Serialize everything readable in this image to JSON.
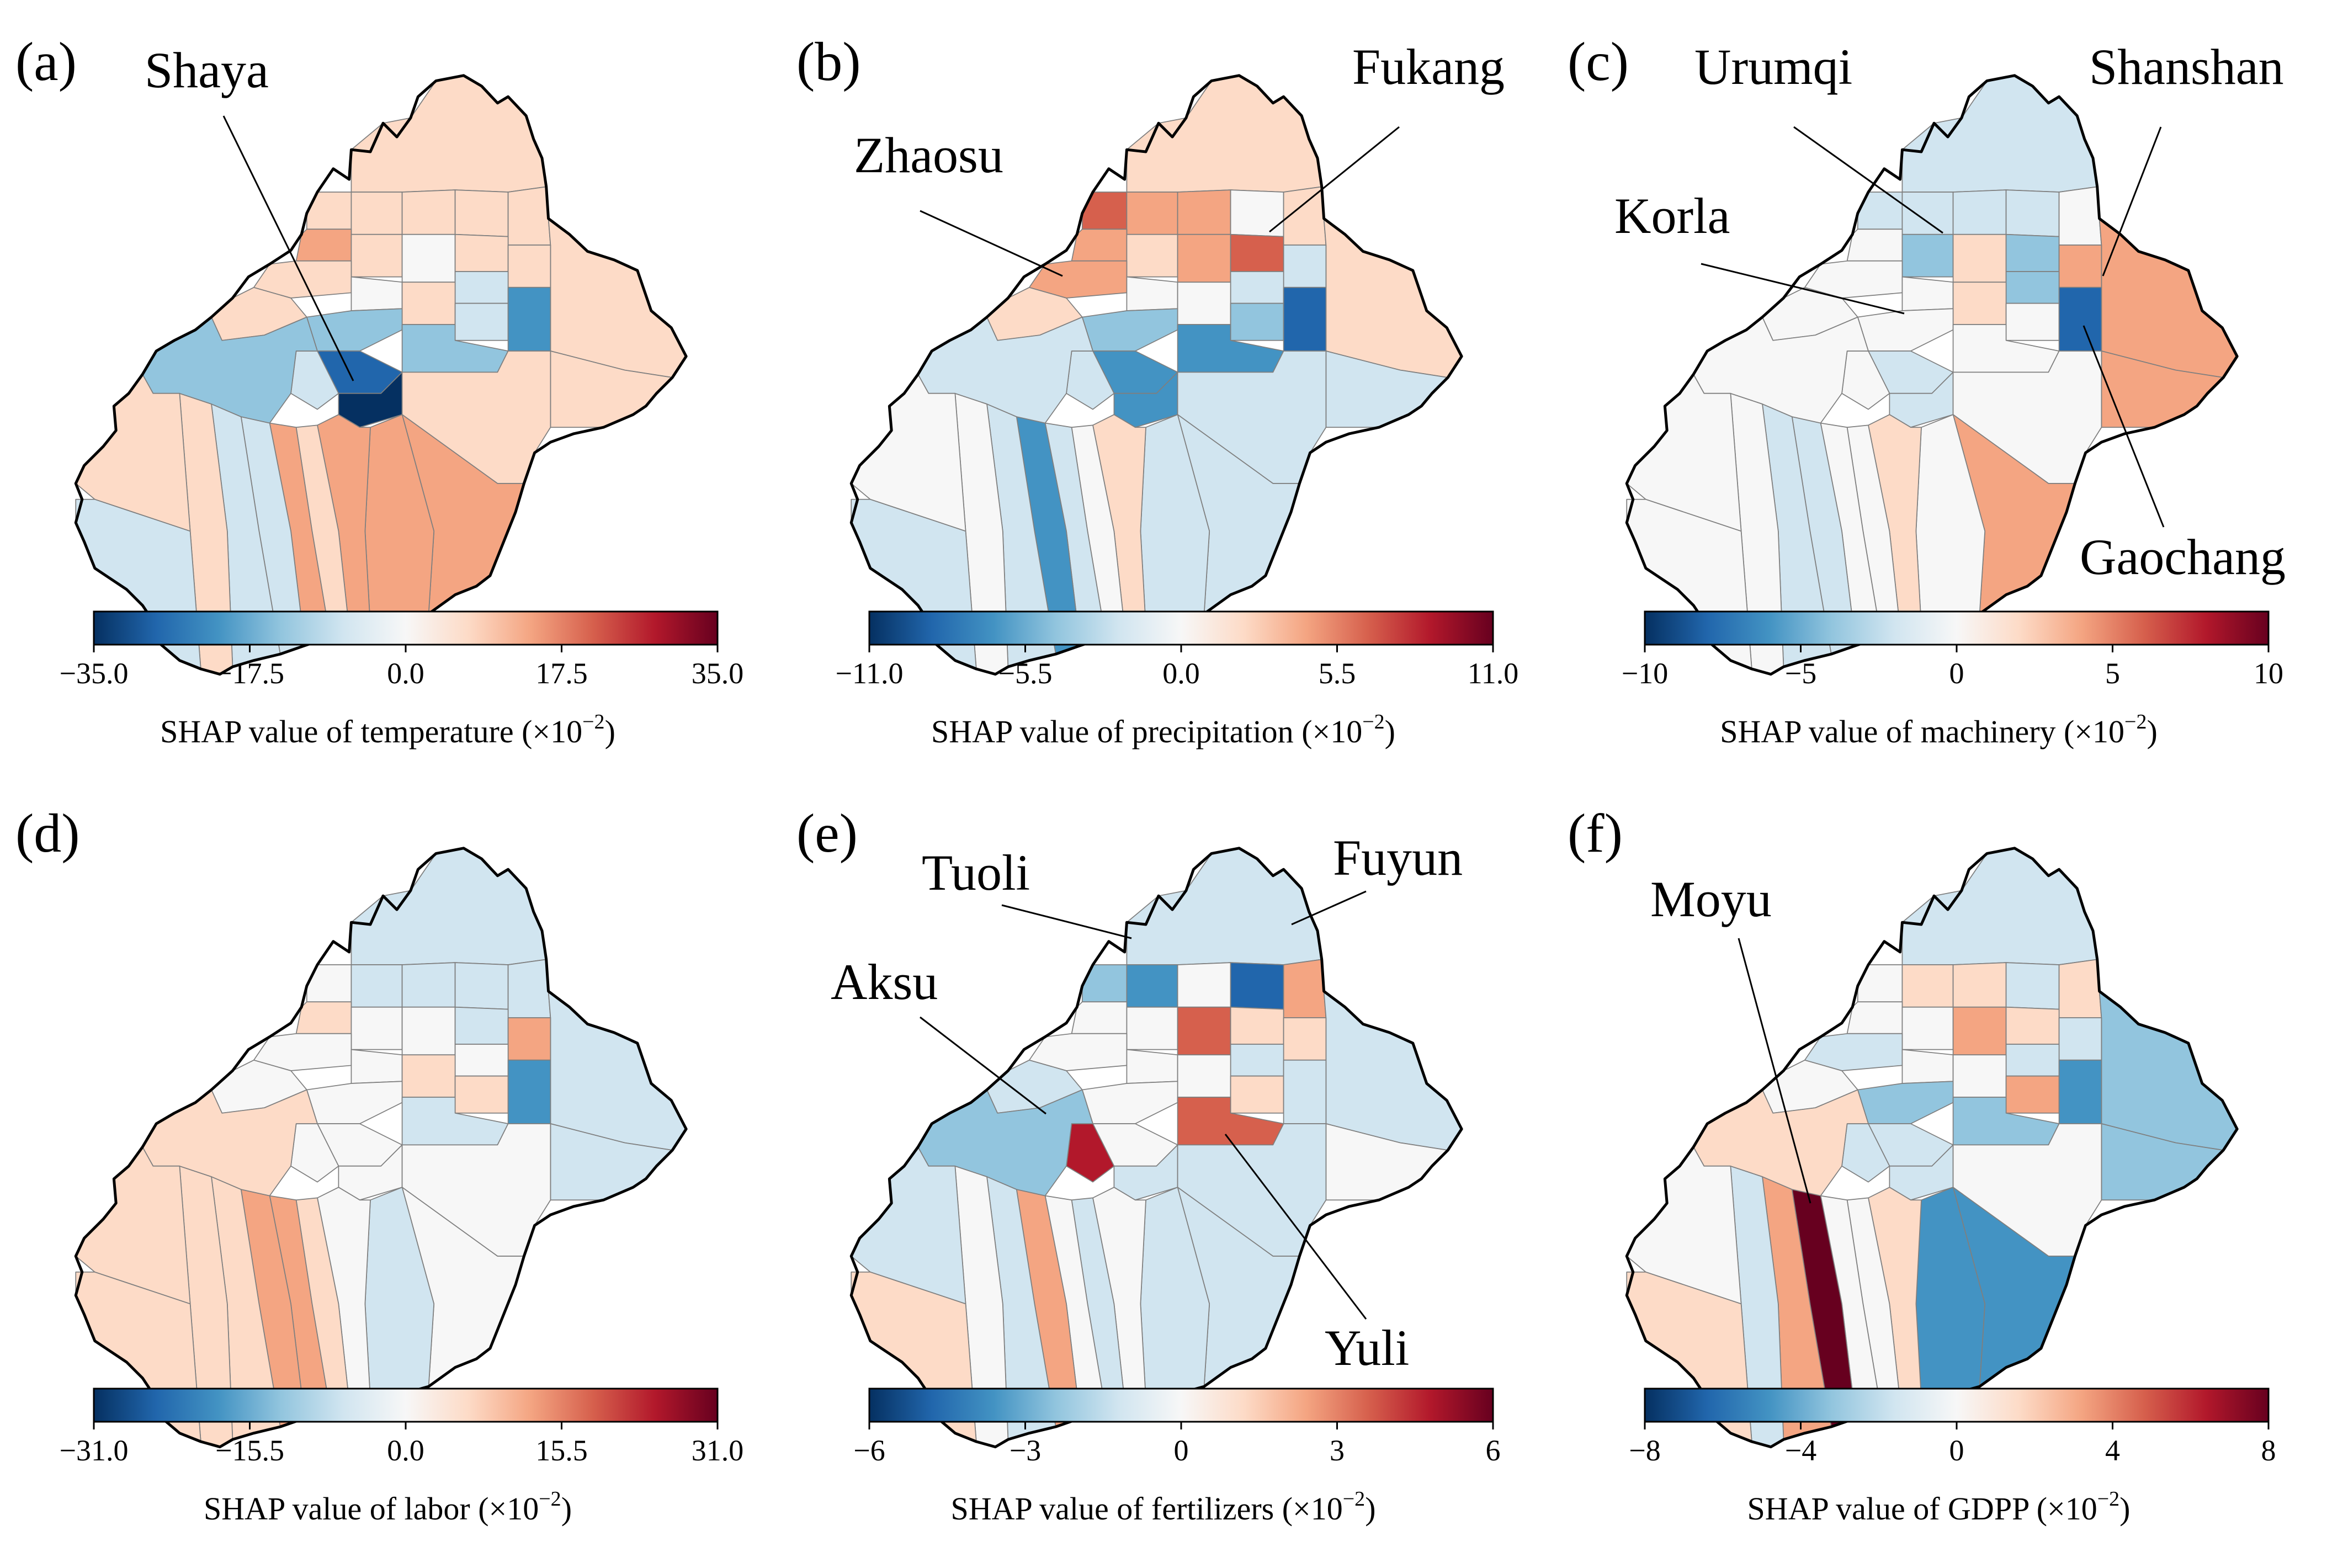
{
  "colors": {
    "scale": [
      "#053061",
      "#2166ac",
      "#4393c3",
      "#92c5de",
      "#d1e5f0",
      "#f7f7f7",
      "#fddbc7",
      "#f4a582",
      "#d6604d",
      "#b2182b",
      "#67001f"
    ],
    "outline": "#000000",
    "county_border": "#7f7f7f",
    "leader_line": "#000000"
  },
  "panels": [
    {
      "label": "(a)",
      "colorbar": {
        "title": "SHAP value of temperature",
        "unit": "(×10",
        "exp": "−2",
        "close": ")",
        "ticks": [
          "−35.0",
          "−17.5",
          "0.0",
          "17.5",
          "35.0"
        ]
      },
      "places": [
        "Shaya"
      ]
    },
    {
      "label": "(b)",
      "colorbar": {
        "title": "SHAP value of precipitation",
        "unit": "(×10",
        "exp": "−2",
        "close": ")",
        "ticks": [
          "−11.0",
          "−5.5",
          "0.0",
          "5.5",
          "11.0"
        ]
      },
      "places": [
        "Fukang",
        "Zhaosu"
      ]
    },
    {
      "label": "(c)",
      "colorbar": {
        "title": "SHAP value of machinery",
        "unit": "(×10",
        "exp": "−2",
        "close": ")",
        "ticks": [
          "−10",
          "−5",
          "0",
          "5",
          "10"
        ]
      },
      "places": [
        "Urumqi",
        "Shanshan",
        "Korla",
        "Gaochang"
      ]
    },
    {
      "label": "(d)",
      "colorbar": {
        "title": "SHAP value of labor",
        "unit": "(×10",
        "exp": "−2",
        "close": ")",
        "ticks": [
          "−31.0",
          "−15.5",
          "0.0",
          "15.5",
          "31.0"
        ]
      },
      "places": []
    },
    {
      "label": "(e)",
      "colorbar": {
        "title": "SHAP value of fertilizers",
        "unit": "(×10",
        "exp": "−2",
        "close": ")",
        "ticks": [
          "−6",
          "−3",
          "0",
          "3",
          "6"
        ]
      },
      "places": [
        "Tuoli",
        "Fuyun",
        "Aksu",
        "Yuli"
      ]
    },
    {
      "label": "(f)",
      "colorbar": {
        "title": "SHAP value of GDPP",
        "unit": "(×10",
        "exp": "−2",
        "close": ")",
        "ticks": [
          "−8",
          "−4",
          "0",
          "4",
          "8"
        ]
      },
      "places": [
        "Moyu"
      ]
    }
  ]
}
